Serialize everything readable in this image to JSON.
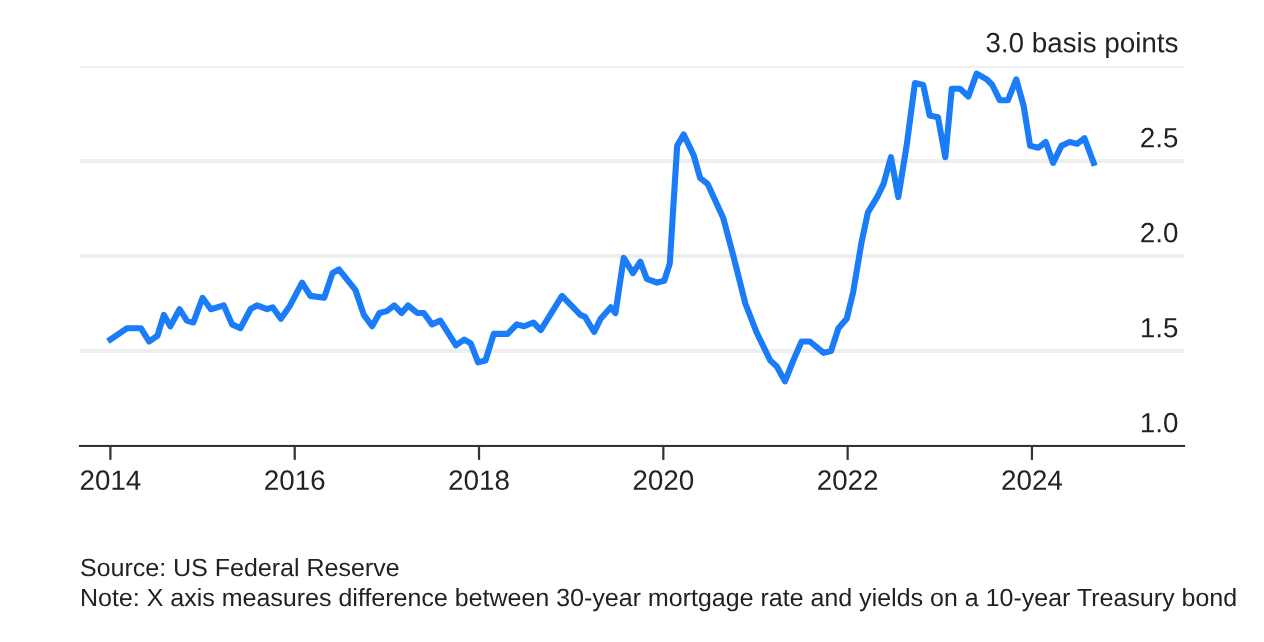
{
  "chart_data": {
    "type": "line",
    "x": [
      2014.0,
      2014.18,
      2014.33,
      2014.42,
      2014.51,
      2014.58,
      2014.65,
      2014.75,
      2014.83,
      2014.9,
      2015.0,
      2015.09,
      2015.23,
      2015.32,
      2015.41,
      2015.52,
      2015.59,
      2015.7,
      2015.76,
      2015.85,
      2015.95,
      2016.08,
      2016.17,
      2016.32,
      2016.41,
      2016.48,
      2016.66,
      2016.75,
      2016.84,
      2016.92,
      2017.0,
      2017.08,
      2017.16,
      2017.23,
      2017.33,
      2017.4,
      2017.49,
      2017.58,
      2017.75,
      2017.84,
      2017.91,
      2017.99,
      2018.07,
      2018.16,
      2018.31,
      2018.41,
      2018.49,
      2018.59,
      2018.67,
      2018.9,
      2019.1,
      2019.15,
      2019.25,
      2019.32,
      2019.43,
      2019.48,
      2019.57,
      2019.67,
      2019.75,
      2019.82,
      2019.93,
      2020.01,
      2020.07,
      2020.15,
      2020.22,
      2020.33,
      2020.4,
      2020.48,
      2020.65,
      2020.76,
      2020.89,
      2021.01,
      2021.16,
      2021.23,
      2021.32,
      2021.41,
      2021.5,
      2021.59,
      2021.74,
      2021.82,
      2021.9,
      2021.99,
      2022.06,
      2022.15,
      2022.22,
      2022.32,
      2022.39,
      2022.47,
      2022.55,
      2022.64,
      2022.73,
      2022.82,
      2022.89,
      2022.98,
      2023.06,
      2023.13,
      2023.22,
      2023.31,
      2023.4,
      2023.51,
      2023.57,
      2023.65,
      2023.74,
      2023.83,
      2023.91,
      2023.98,
      2024.07,
      2024.15,
      2024.23,
      2024.32,
      2024.41,
      2024.49,
      2024.57,
      2024.67
    ],
    "series": [
      {
        "color": "#1a7cf8",
        "values": [
          1.56,
          1.62,
          1.62,
          1.55,
          1.58,
          1.69,
          1.63,
          1.72,
          1.66,
          1.65,
          1.78,
          1.72,
          1.74,
          1.64,
          1.62,
          1.72,
          1.74,
          1.72,
          1.73,
          1.67,
          1.74,
          1.86,
          1.79,
          1.78,
          1.91,
          1.93,
          1.82,
          1.69,
          1.63,
          1.7,
          1.71,
          1.74,
          1.7,
          1.74,
          1.7,
          1.7,
          1.64,
          1.66,
          1.53,
          1.56,
          1.54,
          1.44,
          1.45,
          1.59,
          1.59,
          1.64,
          1.63,
          1.65,
          1.61,
          1.79,
          1.69,
          1.68,
          1.6,
          1.67,
          1.73,
          1.7,
          1.99,
          1.91,
          1.97,
          1.88,
          1.86,
          1.87,
          1.96,
          2.58,
          2.64,
          2.53,
          2.41,
          2.38,
          2.2,
          2.0,
          1.75,
          1.6,
          1.45,
          1.42,
          1.34,
          1.45,
          1.55,
          1.55,
          1.49,
          1.5,
          1.62,
          1.67,
          1.81,
          2.07,
          2.23,
          2.31,
          2.38,
          2.52,
          2.31,
          2.58,
          2.91,
          2.9,
          2.74,
          2.73,
          2.52,
          2.88,
          2.88,
          2.84,
          2.96,
          2.93,
          2.9,
          2.82,
          2.82,
          2.93,
          2.79,
          2.58,
          2.57,
          2.6,
          2.49,
          2.58,
          2.6,
          2.59,
          2.62,
          2.49
        ]
      }
    ],
    "xlim": [
      2013.67,
      2025.65
    ],
    "xticks": [
      2014,
      2016,
      2018,
      2020,
      2022,
      2024
    ],
    "ylim": [
      1.0,
      3.0
    ],
    "yticks": [
      {
        "value": 1.0,
        "label": "1.0"
      },
      {
        "value": 1.5,
        "label": "1.5"
      },
      {
        "value": 2.0,
        "label": "2.0"
      },
      {
        "value": 2.5,
        "label": "2.5"
      },
      {
        "value": 3.0,
        "label": "3.0 basis points"
      }
    ],
    "grid": "y",
    "marker": "none",
    "line_style": "solid",
    "annotations": [
      "Source: US Federal Reserve",
      "Note: X axis measures difference between 30-year mortgage rate and yields on a 10-year Treasury bond"
    ]
  }
}
